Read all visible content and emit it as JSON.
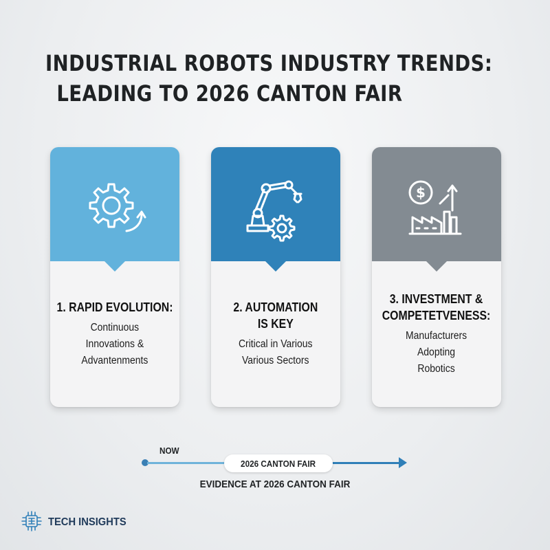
{
  "title": {
    "line1": "INDUSTRIAL ROBOTS INDUSTRY TRENDS:",
    "line2": "LEADING TO 2026 CANTON FAIR"
  },
  "cards": [
    {
      "icon": "gear-arrow-icon",
      "color": "#62b2dc",
      "heading": [
        "1. RAPID EVOLUTION:"
      ],
      "desc": [
        "Continuous",
        "Innovations &",
        "Advantenments"
      ]
    },
    {
      "icon": "robot-arm-icon",
      "color": "#2f82b9",
      "heading": [
        "2. AUTOMATION",
        "IS KEY"
      ],
      "desc": [
        "Critical in Various",
        "Various Sectors"
      ]
    },
    {
      "icon": "investment-factory-icon",
      "color": "#838b92",
      "heading": [
        "3. INVESTMENT &",
        "COMPETETVENESS:"
      ],
      "desc": [
        "Manufacturers",
        "Adopting",
        "Robotics"
      ]
    }
  ],
  "timeline": {
    "start_label": "NOW",
    "milestone_label": "2026 CANTON FAIR",
    "caption": "EVIDENCE AT 2026 CANTON FAIR"
  },
  "brand": {
    "name": "TECH INSIGHTS",
    "icon": "circuit-chip-icon",
    "color": "#2f7fb8"
  }
}
